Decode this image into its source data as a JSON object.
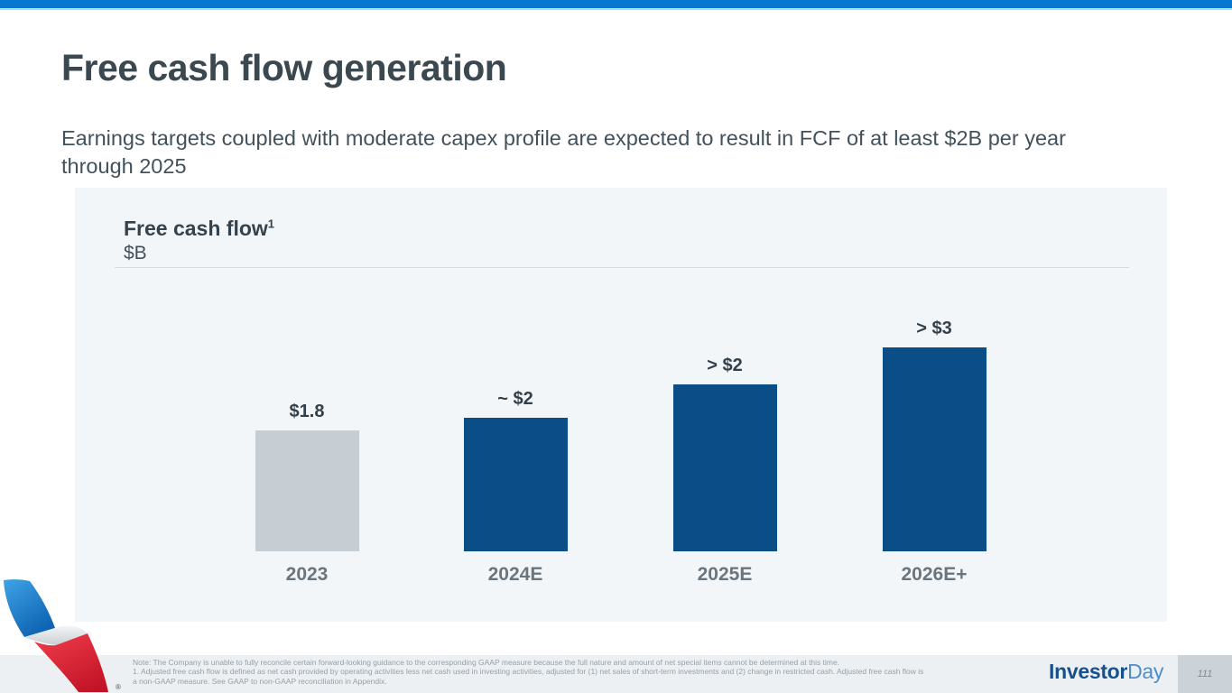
{
  "slide": {
    "title": "Free cash flow generation",
    "subtitle": "Earnings targets coupled with moderate capex profile are expected to result in FCF of at least $2B per year through 2025",
    "page_number": "111"
  },
  "chart_data": {
    "type": "bar",
    "title": "Free cash flow",
    "title_footnote_marker": "1",
    "unit_label": "$B",
    "categories": [
      "2023",
      "2024E",
      "2025E",
      "2026E+"
    ],
    "value_labels": [
      "$1.8",
      "~ $2",
      "> $2",
      "> $3"
    ],
    "values_B": [
      1.8,
      2.0,
      2.0,
      3.0
    ],
    "display_heights_B": [
      1.8,
      2.0,
      2.49,
      3.05
    ],
    "ylim": [
      0,
      3.5
    ],
    "grid": "off",
    "legend": "none",
    "bar_colors": [
      "#c7ced3",
      "#0b4d87",
      "#0b4d87",
      "#0b4d87"
    ],
    "actual_bar_color": "#c7ced3",
    "estimate_bar_color": "#0b4d87"
  },
  "footer": {
    "note_line1": "Note: The Company is unable to fully reconcile certain forward-looking guidance to the corresponding GAAP measure because the full nature and amount of net special items cannot be determined at this time.",
    "note_line2": "1. Adjusted free cash flow is defined as net cash provided by operating activities less net cash used in investing activities, adjusted for (1) net sales of short-term investments and (2) change in restricted cash. Adjusted free cash flow is",
    "note_line3": "a non-GAAP measure. See GAAP to non-GAAP reconciliation in Appendix.",
    "brand_part1": "Investor",
    "brand_part2": "Day",
    "registered_mark": "®"
  },
  "colors": {
    "top_bar": "#0778d1",
    "panel_bg": "#f3f6f8",
    "footer_bg": "#edf0f2",
    "page_box_bg": "#ccd3d8"
  }
}
